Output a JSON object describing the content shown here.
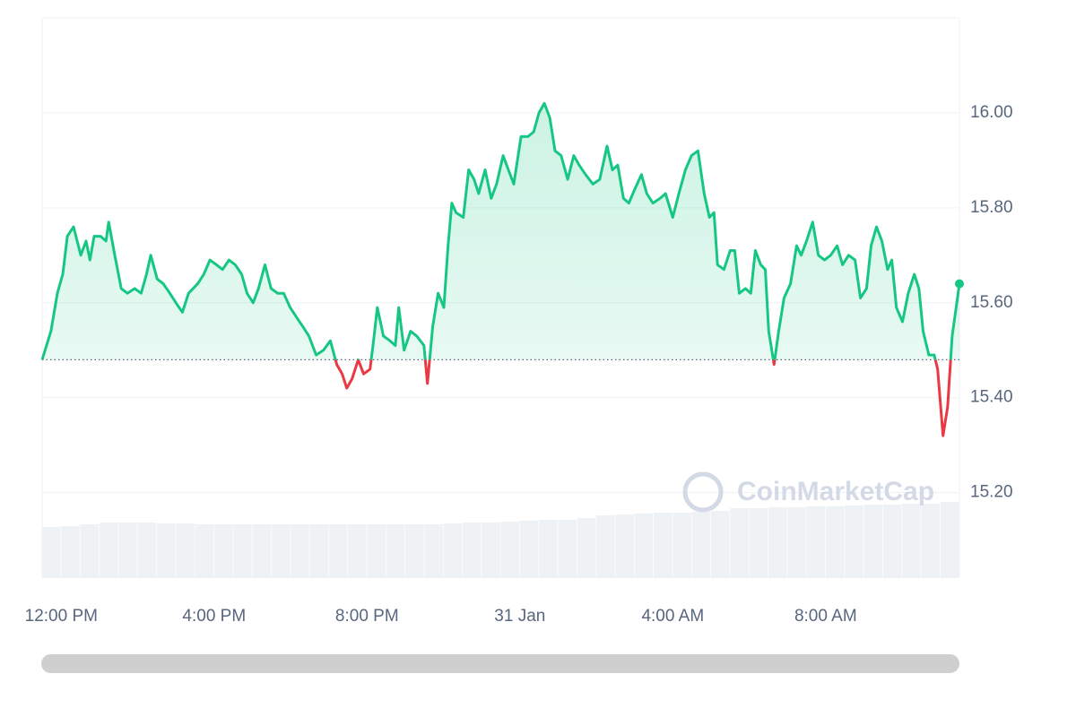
{
  "chart_data": {
    "type": "line",
    "x": [
      -0.5,
      -0.27,
      -0.1,
      0.04,
      0.16,
      0.32,
      0.51,
      0.65,
      0.75,
      0.86,
      1.03,
      1.17,
      1.24,
      1.4,
      1.57,
      1.73,
      1.92,
      2.09,
      2.23,
      2.34,
      2.51,
      2.67,
      2.84,
      3.0,
      3.17,
      3.33,
      3.57,
      3.73,
      3.89,
      4.06,
      4.22,
      4.39,
      4.55,
      4.72,
      4.86,
      5.02,
      5.16,
      5.33,
      5.49,
      5.66,
      5.82,
      5.99,
      6.15,
      6.32,
      6.48,
      6.67,
      6.86,
      7.04,
      7.21,
      7.35,
      7.47,
      7.61,
      7.77,
      7.91,
      8.08,
      8.17,
      8.27,
      8.43,
      8.6,
      8.74,
      8.83,
      8.97,
      9.14,
      9.3,
      9.49,
      9.58,
      9.72,
      9.86,
      10.01,
      10.12,
      10.22,
      10.33,
      10.52,
      10.66,
      10.8,
      10.92,
      11.09,
      11.25,
      11.39,
      11.56,
      11.7,
      11.84,
      12.03,
      12.21,
      12.36,
      12.5,
      12.64,
      12.78,
      12.92,
      13.08,
      13.25,
      13.41,
      13.55,
      13.72,
      13.91,
      14.09,
      14.28,
      14.42,
      14.56,
      14.71,
      14.85,
      15.01,
      15.18,
      15.32,
      15.48,
      15.67,
      15.81,
      16.0,
      16.16,
      16.33,
      16.49,
      16.66,
      16.82,
      16.96,
      17.08,
      17.17,
      17.34,
      17.5,
      17.62,
      17.74,
      17.9,
      18.04,
      18.16,
      18.3,
      18.42,
      18.51,
      18.65,
      18.77,
      18.91,
      19.08,
      19.24,
      19.36,
      19.5,
      19.66,
      19.81,
      19.97,
      20.13,
      20.3,
      20.44,
      20.6,
      20.77,
      20.91,
      21.07,
      21.19,
      21.33,
      21.47,
      21.62,
      21.73,
      21.85,
      22.01,
      22.16,
      22.32,
      22.44,
      22.55,
      22.7,
      22.84,
      22.93,
      23.07,
      23.19,
      23.31,
      23.5
    ],
    "values": [
      15.48,
      15.54,
      15.62,
      15.66,
      15.74,
      15.76,
      15.7,
      15.73,
      15.69,
      15.74,
      15.74,
      15.73,
      15.77,
      15.7,
      15.63,
      15.62,
      15.63,
      15.62,
      15.66,
      15.7,
      15.65,
      15.64,
      15.62,
      15.6,
      15.58,
      15.62,
      15.64,
      15.66,
      15.69,
      15.68,
      15.67,
      15.69,
      15.68,
      15.66,
      15.62,
      15.6,
      15.63,
      15.68,
      15.63,
      15.62,
      15.62,
      15.59,
      15.57,
      15.55,
      15.53,
      15.49,
      15.5,
      15.52,
      15.47,
      15.45,
      15.42,
      15.44,
      15.48,
      15.45,
      15.46,
      15.52,
      15.59,
      15.53,
      15.52,
      15.51,
      15.59,
      15.5,
      15.54,
      15.53,
      15.51,
      15.43,
      15.55,
      15.62,
      15.59,
      15.72,
      15.81,
      15.79,
      15.78,
      15.88,
      15.86,
      15.83,
      15.88,
      15.82,
      15.85,
      15.91,
      15.88,
      15.85,
      15.95,
      15.95,
      15.96,
      16.0,
      16.02,
      15.99,
      15.92,
      15.91,
      15.86,
      15.91,
      15.89,
      15.87,
      15.85,
      15.86,
      15.93,
      15.88,
      15.89,
      15.82,
      15.81,
      15.84,
      15.87,
      15.83,
      15.81,
      15.82,
      15.83,
      15.78,
      15.83,
      15.88,
      15.91,
      15.92,
      15.83,
      15.78,
      15.79,
      15.68,
      15.67,
      15.71,
      15.71,
      15.62,
      15.63,
      15.62,
      15.71,
      15.68,
      15.67,
      15.54,
      15.47,
      15.54,
      15.61,
      15.64,
      15.72,
      15.7,
      15.73,
      15.77,
      15.7,
      15.69,
      15.7,
      15.72,
      15.68,
      15.7,
      15.69,
      15.61,
      15.63,
      15.72,
      15.76,
      15.73,
      15.67,
      15.69,
      15.59,
      15.56,
      15.62,
      15.66,
      15.63,
      15.54,
      15.49,
      15.49,
      15.46,
      15.32,
      15.38,
      15.53,
      15.64
    ],
    "baseline": 15.48,
    "up_color": "#16c784",
    "down_color": "#ea3943",
    "xlim": [
      -0.5,
      23.5
    ],
    "xticks": [
      {
        "value": 0,
        "label": "12:00 PM"
      },
      {
        "value": 4,
        "label": "4:00 PM"
      },
      {
        "value": 8,
        "label": "8:00 PM"
      },
      {
        "value": 12,
        "label": "31 Jan"
      },
      {
        "value": 16,
        "label": "4:00 AM"
      },
      {
        "value": 20,
        "label": "8:00 AM"
      }
    ],
    "ylim": [
      15.02,
      16.2
    ],
    "yticks": [
      {
        "value": 15.2,
        "label": "15.20"
      },
      {
        "value": 15.4,
        "label": "15.40"
      },
      {
        "value": 15.6,
        "label": "15.60"
      },
      {
        "value": 15.8,
        "label": "15.80"
      },
      {
        "value": 16.0,
        "label": "16.00"
      }
    ],
    "grid": true,
    "volume": {
      "values": [
        57,
        58,
        60,
        62,
        62,
        62,
        61,
        61,
        60,
        60,
        60,
        60,
        60,
        60,
        60,
        60,
        60,
        60,
        60,
        60,
        60,
        61,
        62,
        62,
        63,
        64,
        65,
        65,
        67,
        70,
        71,
        72,
        73,
        73,
        74,
        75,
        78,
        78,
        79,
        79,
        80,
        80,
        81,
        82,
        82,
        83,
        83,
        85
      ],
      "lim": [
        0,
        130
      ],
      "color": "#eff2f5"
    },
    "watermark": "CoinMarketCap"
  }
}
